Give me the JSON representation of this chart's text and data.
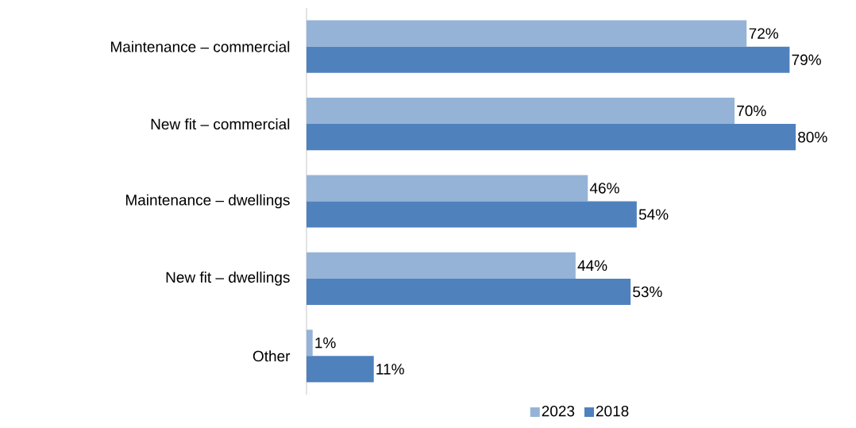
{
  "chart_data": {
    "type": "bar",
    "orientation": "horizontal",
    "categories": [
      "Maintenance – commercial",
      "New fit – commercial",
      "Maintenance – dwellings",
      "New fit – dwellings",
      "Other"
    ],
    "series": [
      {
        "name": "2023",
        "color": "#95b3d7",
        "values": [
          72,
          70,
          46,
          44,
          1
        ],
        "value_labels": [
          "72%",
          "70%",
          "46%",
          "44%",
          "1%"
        ]
      },
      {
        "name": "2018",
        "color": "#4f81bd",
        "values": [
          79,
          80,
          54,
          53,
          11
        ],
        "value_labels": [
          "79%",
          "80%",
          "54%",
          "53%",
          "11%"
        ]
      }
    ],
    "legend": "bottom"
  }
}
